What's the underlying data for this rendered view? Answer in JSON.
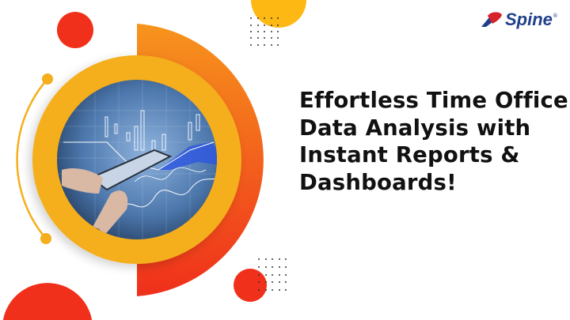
{
  "headline": {
    "lines": [
      "Effortless Time Office",
      "Data Analysis with",
      "Instant Reports &",
      "Dashboards!"
    ]
  },
  "logo": {
    "text": "Spine",
    "mark": "®"
  },
  "colors": {
    "red": "#f0301a",
    "orange": "#f5841f",
    "yellow": "#f5ae1c",
    "logo_blue": "#1f3f8c",
    "logo_red": "#d6232a"
  }
}
